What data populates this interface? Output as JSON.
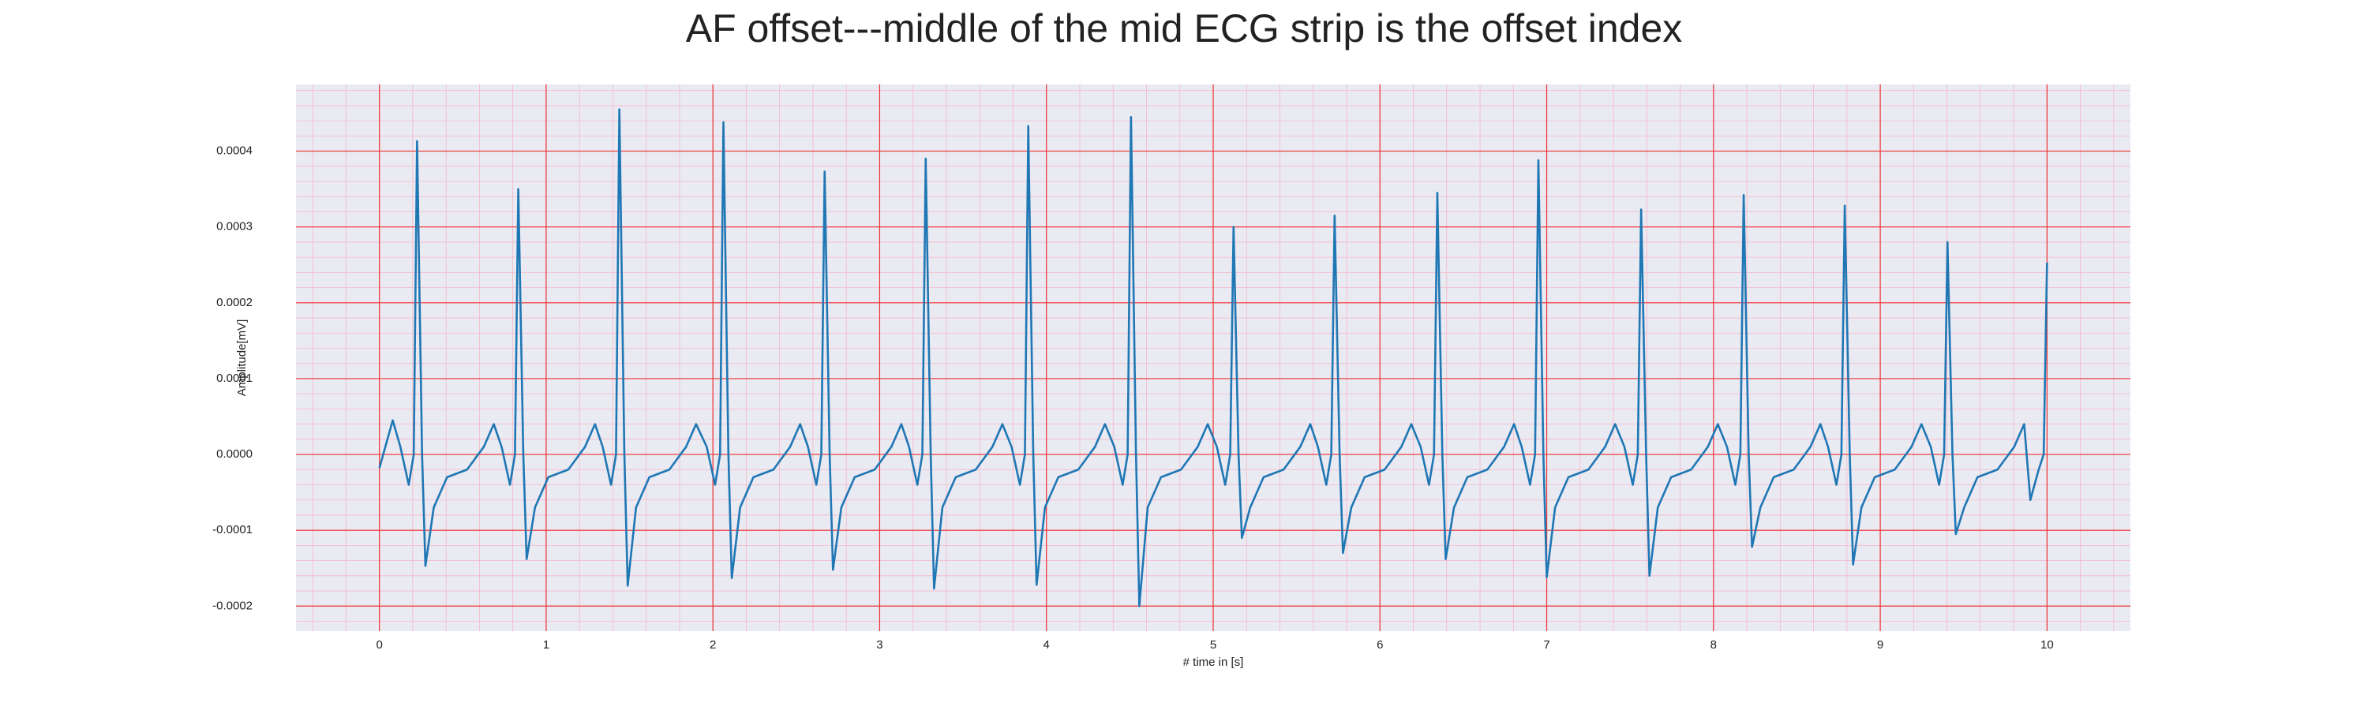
{
  "chart_data": {
    "type": "line",
    "title": "AF offset---middle of the mid ECG strip is the offset index",
    "xlabel": "# time in [s]",
    "ylabel": "Amplitude[mV]",
    "color": "#1f77b4",
    "grid": true,
    "minor_grid": true,
    "xlim": [
      -0.5,
      10.5
    ],
    "ylim": [
      -0.000233,
      0.000488
    ],
    "xticks": [
      0,
      1,
      2,
      3,
      4,
      5,
      6,
      7,
      8,
      9,
      10
    ],
    "yticks": [
      -0.0002,
      -0.0001,
      {
        "value": 0,
        "label": "0.0000"
      },
      0.0001,
      0.0002,
      0.0003,
      0.0004
    ],
    "x": [
      0,
      0.08,
      0.126,
      0.176,
      0.206,
      0.226,
      0.256,
      0.276,
      0.326,
      0.406,
      0.526,
      0.626,
      0.686,
      0.733,
      0.783,
      0.813,
      0.833,
      0.863,
      0.883,
      0.933,
      1.013,
      1.133,
      1.233,
      1.293,
      1.339,
      1.389,
      1.419,
      1.439,
      1.469,
      1.489,
      1.539,
      1.619,
      1.739,
      1.839,
      1.899,
      1.963,
      2.013,
      2.043,
      2.063,
      2.093,
      2.113,
      2.163,
      2.243,
      2.363,
      2.463,
      2.523,
      2.57,
      2.62,
      2.65,
      2.67,
      2.7,
      2.72,
      2.77,
      2.85,
      2.97,
      3.07,
      3.13,
      3.176,
      3.226,
      3.256,
      3.276,
      3.306,
      3.326,
      3.376,
      3.456,
      3.576,
      3.676,
      3.736,
      3.791,
      3.841,
      3.871,
      3.891,
      3.921,
      3.941,
      3.991,
      4.071,
      4.191,
      4.291,
      4.351,
      4.407,
      4.457,
      4.487,
      4.507,
      4.537,
      4.557,
      4.607,
      4.687,
      4.807,
      4.907,
      4.967,
      5.022,
      5.072,
      5.102,
      5.122,
      5.152,
      5.172,
      5.222,
      5.302,
      5.422,
      5.522,
      5.582,
      5.628,
      5.678,
      5.708,
      5.728,
      5.758,
      5.778,
      5.828,
      5.908,
      6.028,
      6.128,
      6.188,
      6.244,
      6.294,
      6.324,
      6.344,
      6.374,
      6.394,
      6.444,
      6.524,
      6.644,
      6.744,
      6.804,
      6.85,
      6.9,
      6.93,
      6.95,
      6.98,
      7.0,
      7.05,
      7.13,
      7.25,
      7.35,
      7.41,
      7.466,
      7.516,
      7.546,
      7.566,
      7.596,
      7.616,
      7.666,
      7.746,
      7.866,
      7.966,
      8.026,
      8.081,
      8.131,
      8.161,
      8.181,
      8.211,
      8.231,
      8.281,
      8.361,
      8.481,
      8.581,
      8.641,
      8.687,
      8.737,
      8.767,
      8.787,
      8.817,
      8.837,
      8.887,
      8.967,
      9.087,
      9.187,
      9.247,
      9.303,
      9.353,
      9.383,
      9.403,
      9.433,
      9.453,
      9.503,
      9.583,
      9.703,
      9.803,
      9.863,
      9.9,
      9.95,
      9.98,
      10.0
    ],
    "values": [
      -1.8e-05,
      4.5e-05,
      1e-05,
      -4e-05,
      0,
      0.000413,
      0,
      -0.000147,
      -7e-05,
      -3e-05,
      -2e-05,
      1e-05,
      4e-05,
      1e-05,
      -4e-05,
      0,
      0.00035,
      0,
      -0.000138,
      -7e-05,
      -3e-05,
      -2e-05,
      1e-05,
      4e-05,
      1e-05,
      -4e-05,
      0,
      0.000455,
      0,
      -0.000173,
      -7e-05,
      -3e-05,
      -2e-05,
      1e-05,
      4e-05,
      1e-05,
      -4e-05,
      0,
      0.000438,
      0,
      -0.000163,
      -7e-05,
      -3e-05,
      -2e-05,
      1e-05,
      4e-05,
      1e-05,
      -4e-05,
      0,
      0.000373,
      0,
      -0.000152,
      -7e-05,
      -3e-05,
      -2e-05,
      1e-05,
      4e-05,
      1e-05,
      -4e-05,
      0,
      0.00039,
      0,
      -0.000177,
      -7e-05,
      -3e-05,
      -2e-05,
      1e-05,
      4e-05,
      1e-05,
      -4e-05,
      0,
      0.000433,
      0,
      -0.000172,
      -7e-05,
      -3e-05,
      -2e-05,
      1e-05,
      4e-05,
      1e-05,
      -4e-05,
      0,
      0.000445,
      0,
      -0.0002,
      -7e-05,
      -3e-05,
      -2e-05,
      1e-05,
      4e-05,
      1e-05,
      -4e-05,
      0,
      0.0003,
      0,
      -0.00011,
      -7e-05,
      -3e-05,
      -2e-05,
      1e-05,
      4e-05,
      1e-05,
      -4e-05,
      0,
      0.000315,
      0,
      -0.00013,
      -7e-05,
      -3e-05,
      -2e-05,
      1e-05,
      4e-05,
      1e-05,
      -4e-05,
      0,
      0.000345,
      0,
      -0.000138,
      -7e-05,
      -3e-05,
      -2e-05,
      1e-05,
      4e-05,
      1e-05,
      -4e-05,
      0,
      0.000388,
      0,
      -0.000162,
      -7e-05,
      -3e-05,
      -2e-05,
      1e-05,
      4e-05,
      1e-05,
      -4e-05,
      0,
      0.000323,
      0,
      -0.00016,
      -7e-05,
      -3e-05,
      -2e-05,
      1e-05,
      4e-05,
      1e-05,
      -4e-05,
      0,
      0.000342,
      0,
      -0.000122,
      -7e-05,
      -3e-05,
      -2e-05,
      1e-05,
      4e-05,
      1e-05,
      -4e-05,
      0,
      0.000328,
      0,
      -0.000145,
      -7e-05,
      -3e-05,
      -2e-05,
      1e-05,
      4e-05,
      1e-05,
      -4e-05,
      0,
      0.00028,
      0,
      -0.000105,
      -7e-05,
      -3e-05,
      -2e-05,
      1e-05,
      4e-05,
      -6e-05,
      -2e-05,
      0,
      0.000253
    ]
  }
}
